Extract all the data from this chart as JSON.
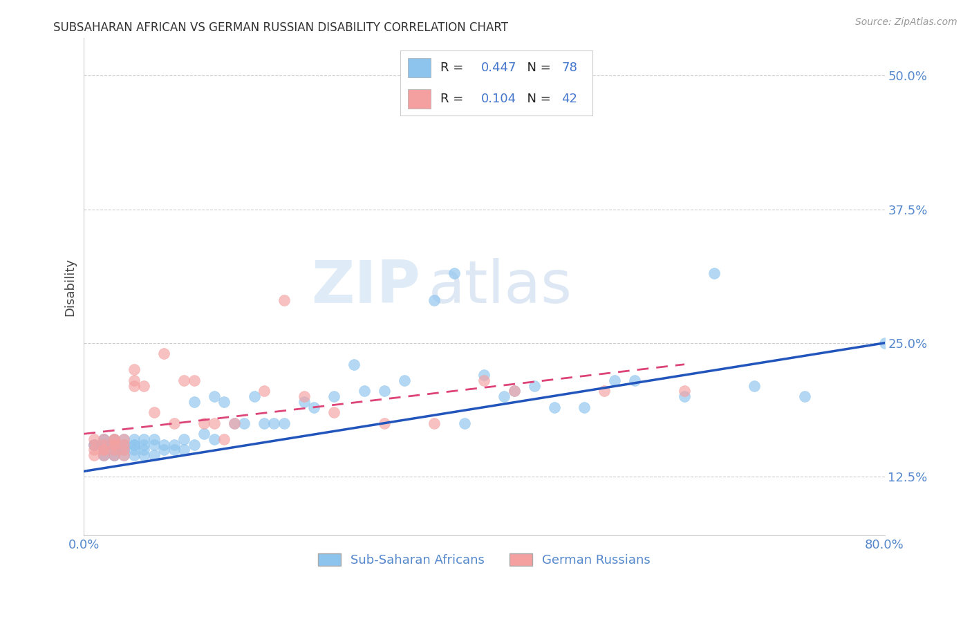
{
  "title": "SUBSAHARAN AFRICAN VS GERMAN RUSSIAN DISABILITY CORRELATION CHART",
  "source": "Source: ZipAtlas.com",
  "ylabel": "Disability",
  "xlim": [
    0.0,
    0.8
  ],
  "ylim": [
    0.07,
    0.535
  ],
  "yticks": [
    0.125,
    0.25,
    0.375,
    0.5
  ],
  "ytick_labels": [
    "12.5%",
    "25.0%",
    "37.5%",
    "50.0%"
  ],
  "xticks": [
    0.0,
    0.2,
    0.4,
    0.6,
    0.8
  ],
  "xtick_labels": [
    "0.0%",
    "",
    "",
    "",
    "80.0%"
  ],
  "legend1_R": "0.447",
  "legend1_N": "78",
  "legend2_R": "0.104",
  "legend2_N": "42",
  "legend1_label": "Sub-Saharan Africans",
  "legend2_label": "German Russians",
  "scatter1_color": "#8DC4EE",
  "scatter2_color": "#F5A0A0",
  "line1_color": "#2255BB",
  "line2_color": "#DD4477",
  "watermark_zip": "ZIP",
  "watermark_atlas": "atlas",
  "background_color": "#ffffff",
  "grid_color": "#cccccc",
  "title_color": "#333333",
  "axis_label_color": "#444444",
  "tick_label_color": "#5588CC",
  "legend_text_color": "#000000",
  "legend_val_color": "#4477CC",
  "scatter1_x": [
    0.01,
    0.01,
    0.01,
    0.01,
    0.02,
    0.02,
    0.02,
    0.02,
    0.02,
    0.02,
    0.02,
    0.02,
    0.03,
    0.03,
    0.03,
    0.03,
    0.03,
    0.03,
    0.03,
    0.04,
    0.04,
    0.04,
    0.04,
    0.04,
    0.04,
    0.05,
    0.05,
    0.05,
    0.05,
    0.05,
    0.06,
    0.06,
    0.06,
    0.06,
    0.07,
    0.07,
    0.07,
    0.08,
    0.08,
    0.09,
    0.09,
    0.1,
    0.1,
    0.11,
    0.11,
    0.12,
    0.13,
    0.13,
    0.14,
    0.15,
    0.16,
    0.17,
    0.18,
    0.19,
    0.2,
    0.22,
    0.23,
    0.25,
    0.27,
    0.28,
    0.3,
    0.32,
    0.35,
    0.37,
    0.38,
    0.4,
    0.42,
    0.43,
    0.45,
    0.47,
    0.5,
    0.53,
    0.55,
    0.6,
    0.63,
    0.67,
    0.72,
    0.8
  ],
  "scatter1_y": [
    0.155,
    0.155,
    0.155,
    0.155,
    0.145,
    0.145,
    0.15,
    0.155,
    0.155,
    0.155,
    0.16,
    0.16,
    0.145,
    0.145,
    0.15,
    0.15,
    0.155,
    0.16,
    0.16,
    0.145,
    0.15,
    0.15,
    0.155,
    0.155,
    0.16,
    0.145,
    0.15,
    0.155,
    0.155,
    0.16,
    0.145,
    0.15,
    0.155,
    0.16,
    0.145,
    0.155,
    0.16,
    0.15,
    0.155,
    0.15,
    0.155,
    0.15,
    0.16,
    0.155,
    0.195,
    0.165,
    0.16,
    0.2,
    0.195,
    0.175,
    0.175,
    0.2,
    0.175,
    0.175,
    0.175,
    0.195,
    0.19,
    0.2,
    0.23,
    0.205,
    0.205,
    0.215,
    0.29,
    0.315,
    0.175,
    0.22,
    0.2,
    0.205,
    0.21,
    0.19,
    0.19,
    0.215,
    0.215,
    0.2,
    0.315,
    0.21,
    0.2,
    0.25
  ],
  "scatter2_x": [
    0.01,
    0.01,
    0.01,
    0.01,
    0.02,
    0.02,
    0.02,
    0.02,
    0.02,
    0.03,
    0.03,
    0.03,
    0.03,
    0.03,
    0.03,
    0.04,
    0.04,
    0.04,
    0.04,
    0.05,
    0.05,
    0.05,
    0.06,
    0.07,
    0.08,
    0.09,
    0.1,
    0.11,
    0.12,
    0.13,
    0.14,
    0.15,
    0.18,
    0.2,
    0.22,
    0.25,
    0.3,
    0.35,
    0.4,
    0.43,
    0.52,
    0.6
  ],
  "scatter2_y": [
    0.145,
    0.15,
    0.155,
    0.16,
    0.145,
    0.15,
    0.15,
    0.155,
    0.16,
    0.145,
    0.15,
    0.155,
    0.155,
    0.16,
    0.16,
    0.145,
    0.15,
    0.155,
    0.16,
    0.21,
    0.215,
    0.225,
    0.21,
    0.185,
    0.24,
    0.175,
    0.215,
    0.215,
    0.175,
    0.175,
    0.16,
    0.175,
    0.205,
    0.29,
    0.2,
    0.185,
    0.175,
    0.175,
    0.215,
    0.205,
    0.205,
    0.205
  ],
  "line1_x": [
    0.0,
    0.8
  ],
  "line1_y": [
    0.13,
    0.25
  ],
  "line2_x": [
    0.0,
    0.6
  ],
  "line2_y": [
    0.165,
    0.23
  ]
}
